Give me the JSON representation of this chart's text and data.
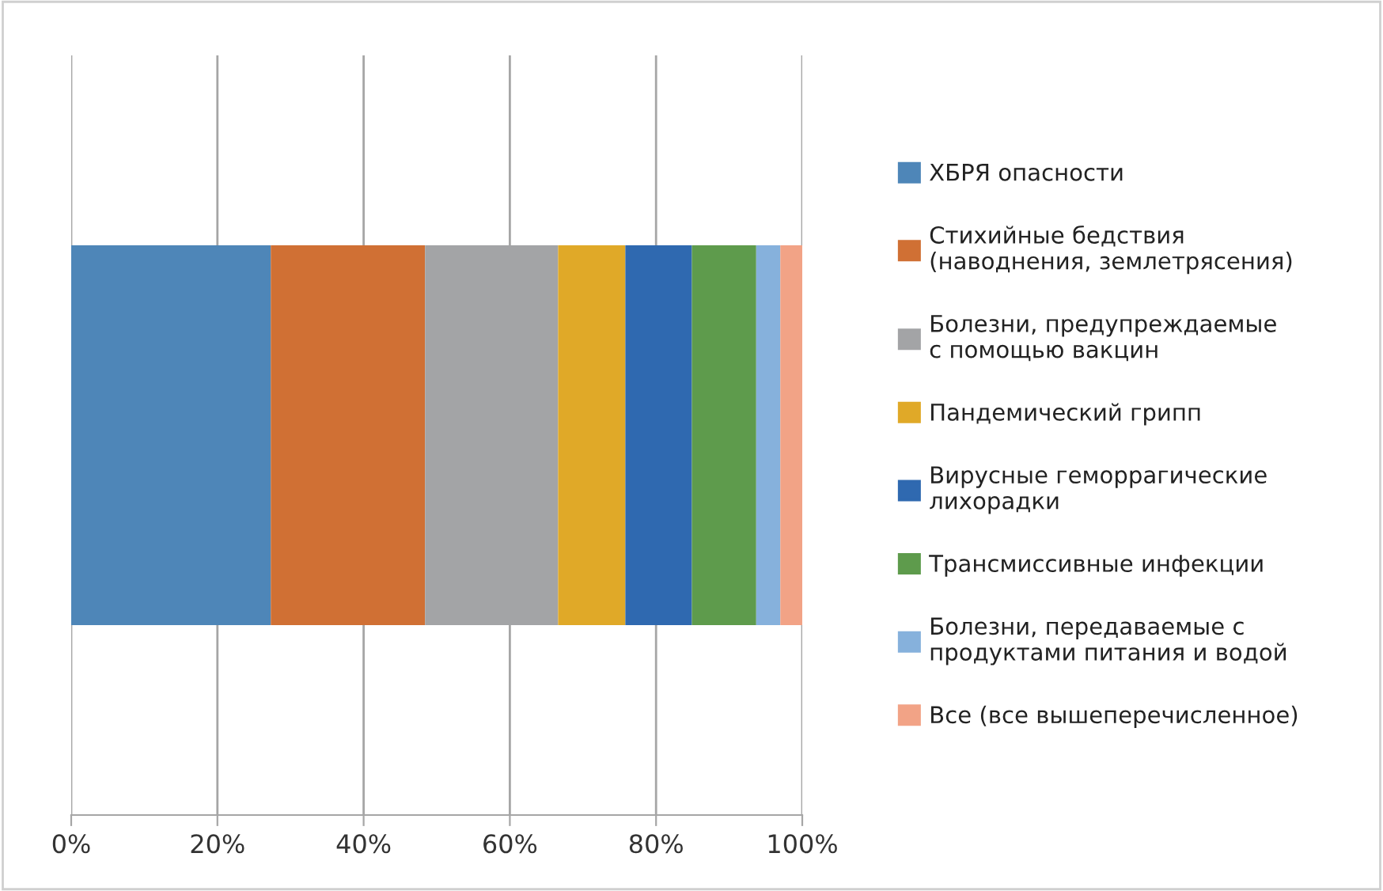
{
  "chart_data": {
    "type": "bar",
    "orientation": "horizontal",
    "stacked": true,
    "categories": [
      null
    ],
    "series": [
      {
        "name": "ХБРЯ опасности",
        "color": "#4e86b8",
        "values": [
          27.3
        ]
      },
      {
        "name": "Стихийные бедствия\n(наводнения, землетрясения)",
        "color": "#d07034",
        "values": [
          21.1
        ]
      },
      {
        "name": "Болезни, предупреждаемые\nс помощью вакцин",
        "color": "#a3a4a6",
        "values": [
          18.2
        ]
      },
      {
        "name": "Пандемический грипп",
        "color": "#e0a928",
        "values": [
          9.2
        ]
      },
      {
        "name": "Вирусные геморрагические\nлихорадки",
        "color": "#2f69b0",
        "values": [
          9.1
        ]
      },
      {
        "name": "Трансмиссивные инфекции",
        "color": "#5e9b4c",
        "values": [
          8.8
        ]
      },
      {
        "name": "Болезни, передаваемые с\nпродуктами питания и водой",
        "color": "#86b1dc",
        "values": [
          3.3
        ]
      },
      {
        "name": "Все (все вышеперечисленное)",
        "color": "#f2a386",
        "values": [
          3.0
        ]
      }
    ],
    "xlim": [
      0,
      100
    ],
    "xticks": [
      {
        "value": 0,
        "label": "0%"
      },
      {
        "value": 20,
        "label": "20%"
      },
      {
        "value": 40,
        "label": "40%"
      },
      {
        "value": 60,
        "label": "60%"
      },
      {
        "value": 80,
        "label": "80%"
      },
      {
        "value": 100,
        "label": "100%"
      }
    ],
    "grid": "x",
    "legend": "right",
    "tick_labels": "x"
  }
}
